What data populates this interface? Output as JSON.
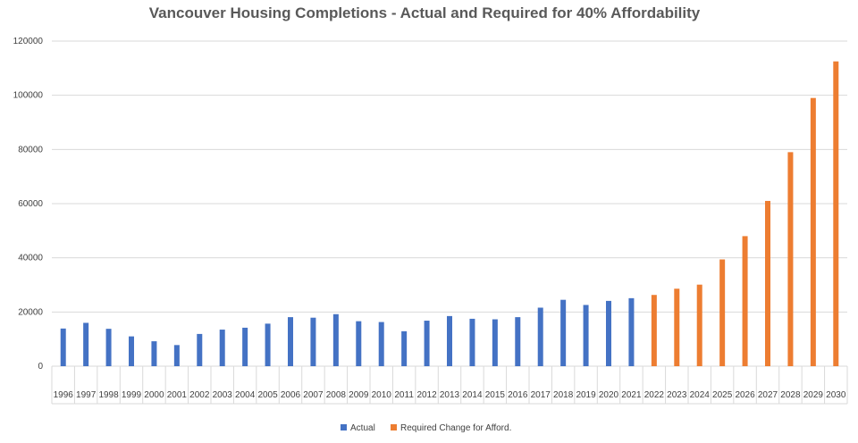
{
  "chart_data": {
    "type": "bar",
    "title": "Vancouver Housing Completions - Actual and Required for 40% Affordability",
    "xlabel": "",
    "ylabel": "",
    "ylim": [
      0,
      120000
    ],
    "yticks": [
      0,
      20000,
      40000,
      60000,
      80000,
      100000,
      120000
    ],
    "grid": true,
    "legend_position": "bottom",
    "categories": [
      "1996",
      "1997",
      "1998",
      "1999",
      "2000",
      "2001",
      "2002",
      "2003",
      "2004",
      "2005",
      "2006",
      "2007",
      "2008",
      "2009",
      "2010",
      "2011",
      "2012",
      "2013",
      "2014",
      "2015",
      "2016",
      "2017",
      "2018",
      "2019",
      "2020",
      "2021",
      "2022",
      "2023",
      "2024",
      "2025",
      "2026",
      "2027",
      "2028",
      "2029",
      "2030"
    ],
    "series": [
      {
        "name": "Actual",
        "color": "#4472C4",
        "values": [
          13900,
          16000,
          13800,
          11000,
          9200,
          7800,
          11900,
          13500,
          14200,
          15700,
          18100,
          17900,
          19200,
          16600,
          16300,
          12900,
          16800,
          18500,
          17500,
          17300,
          18100,
          21600,
          24500,
          22600,
          24100,
          25100,
          null,
          null,
          null,
          null,
          null,
          null,
          null,
          null,
          null
        ]
      },
      {
        "name": "Required Change for Afford.",
        "color": "#ED7D31",
        "values": [
          null,
          null,
          null,
          null,
          null,
          null,
          null,
          null,
          null,
          null,
          null,
          null,
          null,
          null,
          null,
          null,
          null,
          null,
          null,
          null,
          null,
          null,
          null,
          null,
          null,
          null,
          26300,
          28600,
          30100,
          39400,
          48000,
          61000,
          79000,
          99000,
          112500
        ]
      }
    ]
  }
}
